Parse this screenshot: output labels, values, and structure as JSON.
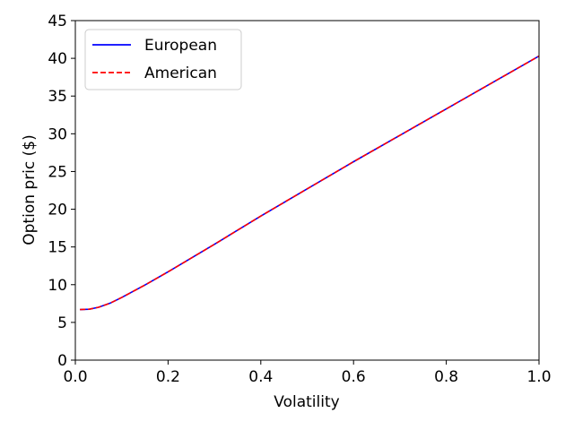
{
  "chart_data": {
    "type": "line",
    "xlabel": "Volatility",
    "ylabel": "Option pric ($)",
    "xlim": [
      0.0,
      1.0
    ],
    "ylim": [
      0,
      45
    ],
    "xticks": [
      "0.0",
      "0.2",
      "0.4",
      "0.6",
      "0.8",
      "1.0"
    ],
    "yticks": [
      "0",
      "5",
      "10",
      "15",
      "20",
      "25",
      "30",
      "35",
      "40",
      "45"
    ],
    "grid": false,
    "legend_position": "top-left",
    "series": [
      {
        "name": "European",
        "color": "#0000ff",
        "style": "solid",
        "x": [
          0.01,
          0.03,
          0.05,
          0.075,
          0.1,
          0.15,
          0.2,
          0.3,
          0.4,
          0.5,
          0.6,
          0.7,
          0.8,
          0.9,
          1.0
        ],
        "y": [
          6.7,
          6.75,
          7.0,
          7.55,
          8.3,
          9.95,
          11.7,
          15.35,
          19.1,
          22.7,
          26.3,
          29.8,
          33.3,
          36.8,
          40.3
        ]
      },
      {
        "name": "American",
        "color": "#ff0000",
        "style": "dashed",
        "x": [
          0.01,
          0.03,
          0.05,
          0.075,
          0.1,
          0.15,
          0.2,
          0.3,
          0.4,
          0.5,
          0.6,
          0.7,
          0.8,
          0.9,
          1.0
        ],
        "y": [
          6.7,
          6.75,
          7.0,
          7.55,
          8.3,
          9.95,
          11.7,
          15.35,
          19.1,
          22.7,
          26.3,
          29.8,
          33.3,
          36.8,
          40.3
        ]
      }
    ]
  }
}
